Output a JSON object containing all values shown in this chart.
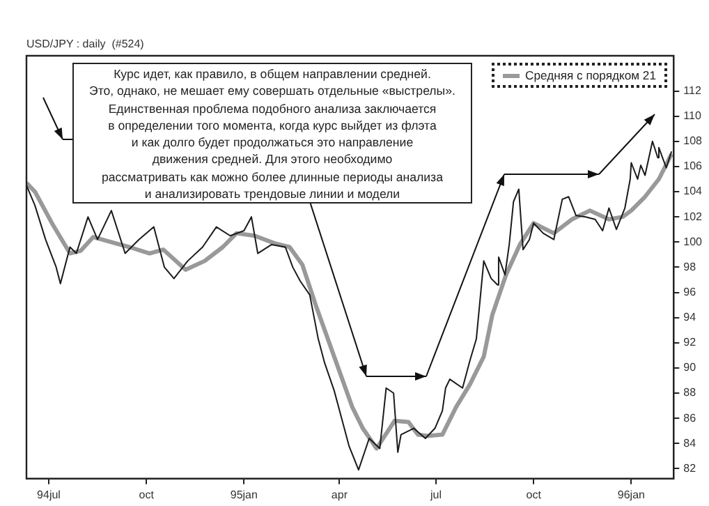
{
  "chart_data": {
    "type": "line",
    "title": "USD/JPY : daily  (#524)",
    "annotations": [
      "Курс идет, как правило, в общем направлении средней.\nЭто, однако, не мешает ему совершать отдельные «выстрелы».\nЕдинственная проблема подобного анализа заключается\nв определении  того момента, когда курс выйдет из флэта\nи как долго будет продолжаться это направление\nдвижения средней. Для этого необходимо\nрассматривать как можно более длинные периоды анализа\nи анализировать трендовые линии и модели"
    ],
    "xlim": [
      "1994-06-10",
      "1996-02-10"
    ],
    "xticks": [
      {
        "value": "1994-07-01",
        "label": "94jul"
      },
      {
        "value": "1994-10-01",
        "label": "oct"
      },
      {
        "value": "1995-01-01",
        "label": "95jan"
      },
      {
        "value": "1995-04-01",
        "label": "apr"
      },
      {
        "value": "1995-07-01",
        "label": "jul"
      },
      {
        "value": "1995-10-01",
        "label": "oct"
      },
      {
        "value": "1996-01-01",
        "label": "96jan"
      }
    ],
    "ylim": [
      81.2,
      114.8
    ],
    "yticks": [
      82,
      84,
      86,
      88,
      90,
      92,
      94,
      96,
      98,
      100,
      102,
      104,
      106,
      108,
      110,
      112
    ],
    "legend": "top right",
    "marker": "none",
    "series": [
      {
        "color": "#1a1a1a",
        "x": [
          "1994-06-10",
          "1994-06-18",
          "1994-06-28",
          "1994-07-08",
          "1994-07-12",
          "1994-07-21",
          "1994-07-27",
          "1994-08-07",
          "1994-08-16",
          "1994-08-29",
          "1994-09-11",
          "1994-09-24",
          "1994-10-08",
          "1994-10-18",
          "1994-10-27",
          "1994-11-09",
          "1994-11-23",
          "1994-12-06",
          "1994-12-19",
          "1995-01-01",
          "1995-01-08",
          "1995-01-14",
          "1995-01-27",
          "1995-02-09",
          "1995-02-16",
          "1995-02-23",
          "1995-03-04",
          "1995-03-12",
          "1995-03-18",
          "1995-03-27",
          "1995-04-03",
          "1995-04-10",
          "1995-04-19",
          "1995-04-29",
          "1995-05-09",
          "1995-05-15",
          "1995-05-22",
          "1995-05-26",
          "1995-05-29",
          "1995-06-10",
          "1995-06-21",
          "1995-06-30",
          "1995-07-07",
          "1995-07-10",
          "1995-07-14",
          "1995-07-26",
          "1995-08-02",
          "1995-08-08",
          "1995-08-15",
          "1995-08-22",
          "1995-08-28",
          "1995-08-29",
          "1995-09-04",
          "1995-09-08",
          "1995-09-12",
          "1995-09-17",
          "1995-09-21",
          "1995-09-27",
          "1995-10-01",
          "1995-10-10",
          "1995-10-20",
          "1995-10-28",
          "1995-11-03",
          "1995-11-10",
          "1995-11-19",
          "1995-11-28",
          "1995-12-05",
          "1995-12-11",
          "1995-12-18",
          "1995-12-26",
          "1995-12-31",
          "1996-01-01",
          "1996-01-07",
          "1996-01-10",
          "1996-01-14",
          "1996-01-21",
          "1996-01-26",
          "1996-01-27",
          "1996-02-03",
          "1996-02-08"
        ],
        "values": [
          104.5,
          102.9,
          100.2,
          98.0,
          96.7,
          99.6,
          99.1,
          102.0,
          100.2,
          102.5,
          99.1,
          100.2,
          101.2,
          98.0,
          97.1,
          98.5,
          99.6,
          101.2,
          100.5,
          100.9,
          102.0,
          99.1,
          99.8,
          99.6,
          98.0,
          96.9,
          95.8,
          92.3,
          90.4,
          88.2,
          86.0,
          83.8,
          81.9,
          84.4,
          83.6,
          88.4,
          88.0,
          83.3,
          84.7,
          85.2,
          84.4,
          85.2,
          86.6,
          88.4,
          89.1,
          88.4,
          90.6,
          92.3,
          98.5,
          97.1,
          96.6,
          98.8,
          97.4,
          99.8,
          103.2,
          104.2,
          99.4,
          100.2,
          101.5,
          100.7,
          100.2,
          103.4,
          103.6,
          102.1,
          102.0,
          101.8,
          100.9,
          102.7,
          101.0,
          102.7,
          105.0,
          106.3,
          105.0,
          106.1,
          105.3,
          108.0,
          106.7,
          107.5,
          105.9,
          107.2
        ]
      },
      {
        "name": "Средняя с порядком 21",
        "color": "#999999",
        "x": [
          "1994-06-10",
          "1994-06-18",
          "1994-07-04",
          "1994-07-21",
          "1994-07-31",
          "1994-08-12",
          "1994-09-02",
          "1994-09-15",
          "1994-10-04",
          "1994-10-17",
          "1994-11-07",
          "1994-11-25",
          "1994-12-12",
          "1994-12-25",
          "1995-01-11",
          "1995-01-30",
          "1995-02-13",
          "1995-02-25",
          "1995-03-10",
          "1995-03-27",
          "1995-04-13",
          "1995-04-23",
          "1995-05-06",
          "1995-05-23",
          "1995-06-05",
          "1995-06-14",
          "1995-06-23",
          "1995-07-07",
          "1995-07-20",
          "1995-08-02",
          "1995-08-15",
          "1995-08-23",
          "1995-09-05",
          "1995-09-18",
          "1995-10-01",
          "1995-10-20",
          "1995-11-06",
          "1995-11-23",
          "1995-12-11",
          "1995-12-24",
          "1996-01-01",
          "1996-01-14",
          "1996-01-27",
          "1996-02-08"
        ],
        "values": [
          104.7,
          104.0,
          101.5,
          99.1,
          99.3,
          100.4,
          99.9,
          99.6,
          99.1,
          99.4,
          97.8,
          98.5,
          99.6,
          100.7,
          100.5,
          99.9,
          99.6,
          98.2,
          94.9,
          90.9,
          86.9,
          85.2,
          83.6,
          85.8,
          85.7,
          84.7,
          84.6,
          84.7,
          86.9,
          88.7,
          90.9,
          94.2,
          97.4,
          99.8,
          101.5,
          100.7,
          101.8,
          102.5,
          101.8,
          102.0,
          102.5,
          103.6,
          105.0,
          107.0
        ]
      }
    ]
  }
}
